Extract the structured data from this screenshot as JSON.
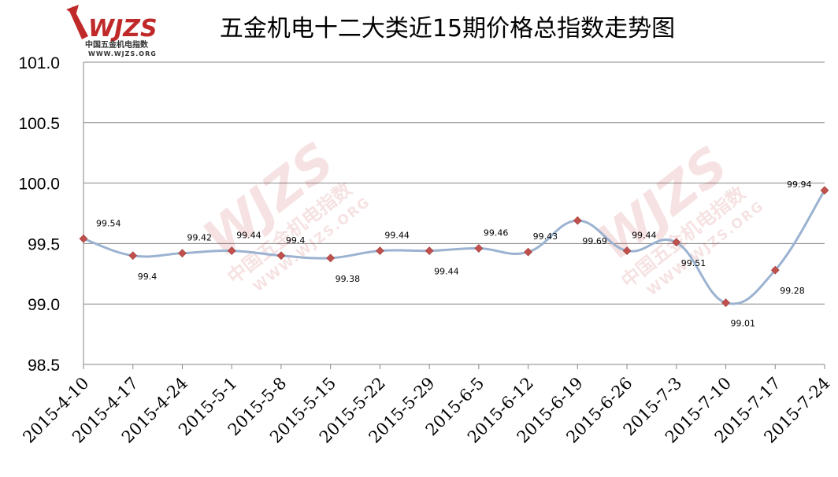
{
  "logo": {
    "mark": "WJZS",
    "cn": "中国五金机电指数",
    "url": "WWW.WJZS.ORG"
  },
  "watermark": {
    "mark": "WJZS",
    "cn": "中国五金机电指数",
    "url": "WWW.WJZS.ORG"
  },
  "chart_data": {
    "type": "line",
    "title": "五金机电十二大类近15期价格总指数走势图",
    "xlabel": "",
    "ylabel": "",
    "categories": [
      "2015-4-10",
      "2015-4-17",
      "2015-4-24",
      "2015-5-1",
      "2015-5-8",
      "2015-5-15",
      "2015-5-22",
      "2015-5-29",
      "2015-6-5",
      "2015-6-12",
      "2015-6-19",
      "2015-6-26",
      "2015-7-3",
      "2015-7-10",
      "2015-7-17",
      "2015-7-24"
    ],
    "values": [
      99.54,
      99.4,
      99.42,
      99.44,
      99.4,
      99.38,
      99.44,
      99.44,
      99.46,
      99.43,
      99.69,
      99.44,
      99.51,
      99.01,
      99.28,
      99.94
    ],
    "ylim": [
      98.5,
      101.0
    ],
    "yticks": [
      "98.5",
      "99.0",
      "99.5",
      "100.0",
      "100.5",
      "101.0"
    ],
    "grid": true,
    "line_color": "#9bb3d1",
    "marker_color": "#c0504d"
  }
}
